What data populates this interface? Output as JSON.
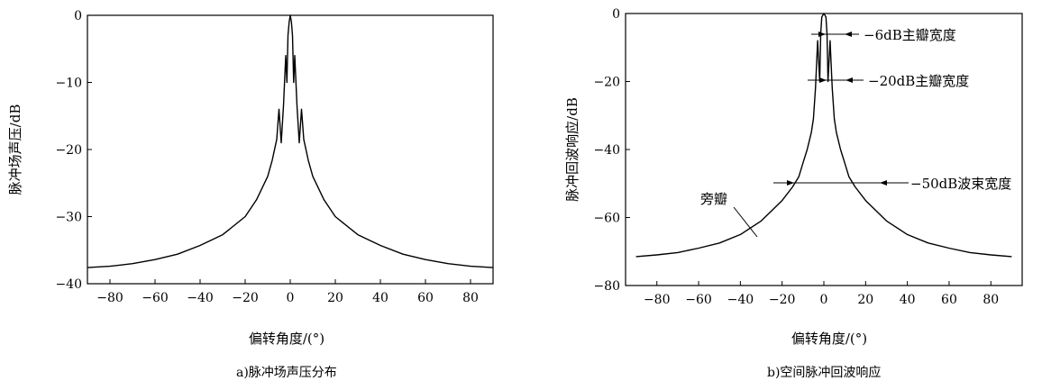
{
  "chart_data": [
    {
      "type": "line",
      "caption": "a)脉冲场声压分布",
      "xlabel": "偏转角度/(°)",
      "ylabel": "脉冲场声压/dB",
      "xlim": [
        -90,
        90
      ],
      "ylim": [
        -40,
        0
      ],
      "xticks": [
        "-80",
        "-60",
        "-40",
        "-20",
        "0",
        "20",
        "40",
        "60",
        "80"
      ],
      "yticks": [
        "0",
        "-10",
        "-20",
        "-30",
        "-40"
      ],
      "series": [
        {
          "x": [
            -90,
            -80,
            -70,
            -60,
            -50,
            -40,
            -30,
            -20,
            -15,
            -10,
            -8,
            -6,
            -5,
            -4,
            -3,
            -2,
            -1.5,
            -1,
            -0.5,
            0,
            0.5,
            1,
            1.5,
            2,
            3,
            4,
            5,
            6,
            8,
            10,
            15,
            20,
            30,
            40,
            50,
            60,
            70,
            80,
            90
          ],
          "y": [
            -37.6,
            -37.4,
            -37.0,
            -36.4,
            -35.6,
            -34.3,
            -32.7,
            -30.0,
            -27.5,
            -24.0,
            -21.6,
            -18.5,
            -14.0,
            -19.0,
            -13.5,
            -6.0,
            -10.0,
            -3.0,
            -1.0,
            0,
            -1.0,
            -3.0,
            -10.0,
            -6.0,
            -13.5,
            -19.0,
            -14.0,
            -18.5,
            -21.6,
            -24.0,
            -27.5,
            -30.0,
            -32.7,
            -34.3,
            -35.6,
            -36.4,
            -37.0,
            -37.4,
            -37.6
          ]
        }
      ]
    },
    {
      "type": "line",
      "caption": "b)空间脉冲回波响应",
      "xlabel": "偏转角度/(°)",
      "ylabel": "脉冲回波响应/dB",
      "xlim": [
        -95,
        95
      ],
      "ylim": [
        -80,
        0
      ],
      "xticks": [
        "-80",
        "-60",
        "-40",
        "-20",
        "0",
        "20",
        "40",
        "60",
        "80"
      ],
      "yticks": [
        "0",
        "-20",
        "-40",
        "-60",
        "-80"
      ],
      "annotations": [
        "−6dB主瓣宽度",
        "−20dB主瓣宽度",
        "−50dB波束宽度",
        "旁瓣"
      ],
      "series": [
        {
          "x": [
            -90,
            -80,
            -70,
            -60,
            -50,
            -40,
            -30,
            -20,
            -15,
            -12,
            -10,
            -8,
            -6,
            -5,
            -4,
            -3,
            -2,
            -1.5,
            -1,
            0,
            1,
            1.5,
            2,
            3,
            4,
            5,
            6,
            8,
            10,
            12,
            15,
            20,
            30,
            40,
            50,
            60,
            70,
            80,
            90
          ],
          "y": [
            -71.5,
            -71.0,
            -70.3,
            -69.0,
            -67.5,
            -65.0,
            -61.0,
            -55.0,
            -51.0,
            -48.0,
            -44.0,
            -40.0,
            -35.0,
            -31.0,
            -22.0,
            -8.0,
            -20.0,
            -6.0,
            -1.0,
            0,
            -1.0,
            -6.0,
            -20.0,
            -8.0,
            -22.0,
            -31.0,
            -35.0,
            -40.0,
            -44.0,
            -48.0,
            -51.0,
            -55.0,
            -61.0,
            -65.0,
            -67.5,
            -69.0,
            -70.3,
            -71.0,
            -71.5
          ]
        }
      ]
    }
  ]
}
